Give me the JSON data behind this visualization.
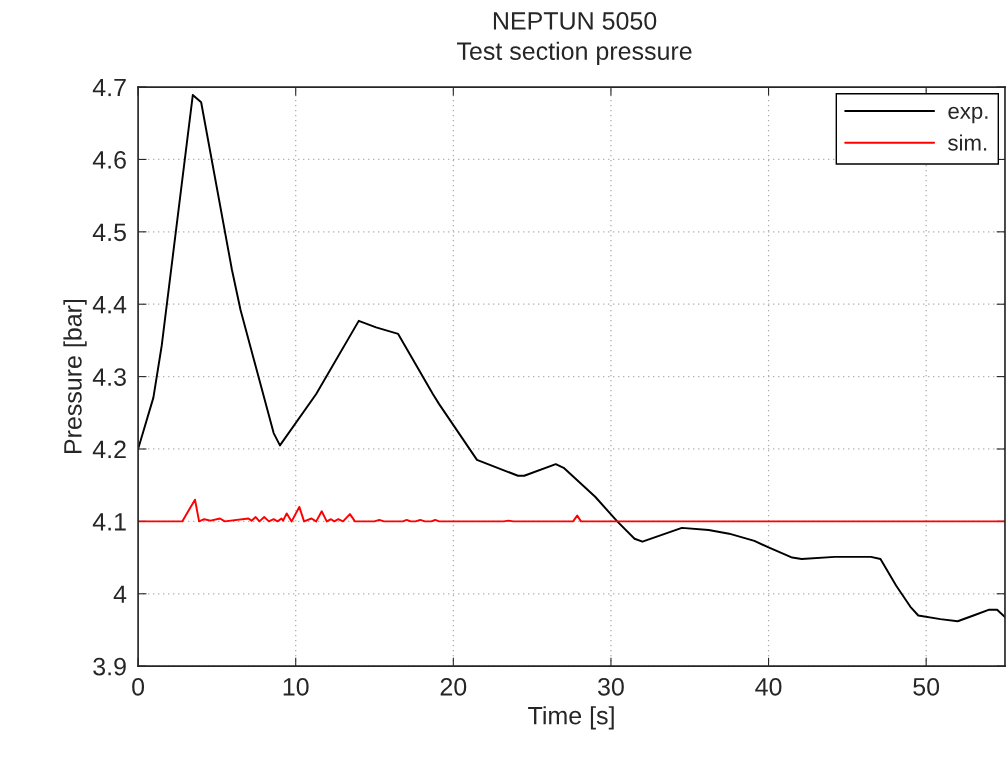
{
  "chart_data": {
    "type": "line",
    "title": "NEPTUN 5050",
    "subtitle": "Test section pressure",
    "xlabel": "Time [s]",
    "ylabel": "Pressure [bar]",
    "xlim": [
      0,
      55
    ],
    "xticks": [
      0,
      10,
      20,
      30,
      40,
      50
    ],
    "ylim": [
      3.9,
      4.7
    ],
    "yticks": [
      3.9,
      4,
      4.1,
      4.2,
      4.3,
      4.4,
      4.5,
      4.6,
      4.7
    ],
    "grid": true,
    "legend": "top right",
    "line_style": "solid",
    "marker": "none",
    "series": [
      {
        "name": "exp.",
        "color": "#000000",
        "x": [
          0,
          0.97,
          1.5,
          3.47,
          4.0,
          5.95,
          6.5,
          8.6,
          9.0,
          11.3,
          14.0,
          15.1,
          16.5,
          18.7,
          19.1,
          21.5,
          24.1,
          24.5,
          26.5,
          27.0,
          29.0,
          30.4,
          31.5,
          32.0,
          34.5,
          36.2,
          37.5,
          39.1,
          40.0,
          41.5,
          42.1,
          44.2,
          46.5,
          47.1,
          48.1,
          49.0,
          49.5,
          50.9,
          52.0,
          53.0,
          54.0,
          54.5,
          55
        ],
        "values": [
          4.2,
          4.271,
          4.343,
          4.689,
          4.679,
          4.448,
          4.392,
          4.222,
          4.205,
          4.276,
          4.377,
          4.368,
          4.359,
          4.276,
          4.262,
          4.185,
          4.163,
          4.163,
          4.179,
          4.174,
          4.134,
          4.1,
          4.076,
          4.072,
          4.091,
          4.088,
          4.083,
          4.073,
          4.064,
          4.05,
          4.048,
          4.051,
          4.051,
          4.048,
          4.011,
          3.982,
          3.97,
          3.965,
          3.962,
          3.97,
          3.978,
          3.978,
          3.968
        ]
      },
      {
        "name": "sim.",
        "color": "#ff0000",
        "x": [
          0,
          2.8,
          3.61,
          3.87,
          4.19,
          4.6,
          5.2,
          5.5,
          7.0,
          7.2,
          7.46,
          7.7,
          8.0,
          8.3,
          8.6,
          8.85,
          9.1,
          9.2,
          9.43,
          9.74,
          10.23,
          10.53,
          11.0,
          11.3,
          11.65,
          11.97,
          12.24,
          12.45,
          12.7,
          13.0,
          13.44,
          13.76,
          15.0,
          15.3,
          15.6,
          16.8,
          17.04,
          17.3,
          17.6,
          17.9,
          18.2,
          18.6,
          18.85,
          19.1,
          23.2,
          23.5,
          23.8,
          27.6,
          27.86,
          28.1,
          55
        ],
        "values": [
          4.1,
          4.1,
          4.13,
          4.1,
          4.103,
          4.101,
          4.104,
          4.1,
          4.104,
          4.101,
          4.106,
          4.1,
          4.106,
          4.1,
          4.103,
          4.1,
          4.104,
          4.101,
          4.111,
          4.1,
          4.12,
          4.1,
          4.104,
          4.1,
          4.114,
          4.1,
          4.103,
          4.1,
          4.103,
          4.1,
          4.11,
          4.1,
          4.1,
          4.102,
          4.1,
          4.1,
          4.102,
          4.1,
          4.1,
          4.102,
          4.1,
          4.1,
          4.102,
          4.1,
          4.1,
          4.101,
          4.1,
          4.1,
          4.108,
          4.1,
          4.1
        ]
      }
    ]
  }
}
